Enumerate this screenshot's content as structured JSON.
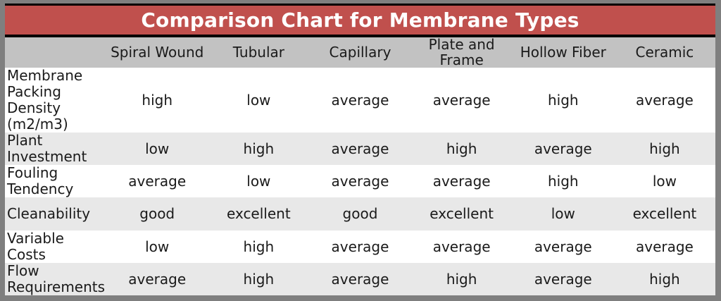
{
  "title": "Comparison Chart for Membrane Types",
  "colors": {
    "frame": "#7f7f7f",
    "border": "#000000",
    "title_bg": "#c0504d",
    "title_text": "#ffffff",
    "header_row_bg": "#c2c2c2",
    "band_row_bg": "#e8e8e8",
    "row_bg": "#ffffff",
    "body_text": "#1a1a1a"
  },
  "chart_data": {
    "type": "table",
    "title": "Comparison Chart for Membrane Types",
    "columns": [
      "",
      "Spiral Wound",
      "Tubular",
      "Capillary",
      "Plate and Frame",
      "Hollow Fiber",
      "Ceramic"
    ],
    "rows": [
      {
        "label": "Membrane Packing Density (m2/m3)",
        "values": [
          "high",
          "low",
          "average",
          "average",
          "high",
          "average"
        ]
      },
      {
        "label": "Plant Investment",
        "values": [
          "low",
          "high",
          "average",
          "high",
          "average",
          "high"
        ]
      },
      {
        "label": "Fouling Tendency",
        "values": [
          "average",
          "low",
          "average",
          "average",
          "high",
          "low"
        ]
      },
      {
        "label": "Cleanability",
        "values": [
          "good",
          "excellent",
          "good",
          "excellent",
          "low",
          "excellent"
        ]
      },
      {
        "label": "Variable Costs",
        "values": [
          "low",
          "high",
          "average",
          "average",
          "average",
          "average"
        ]
      },
      {
        "label": "Flow Requirements",
        "values": [
          "average",
          "high",
          "average",
          "high",
          "average",
          "high"
        ]
      }
    ]
  }
}
